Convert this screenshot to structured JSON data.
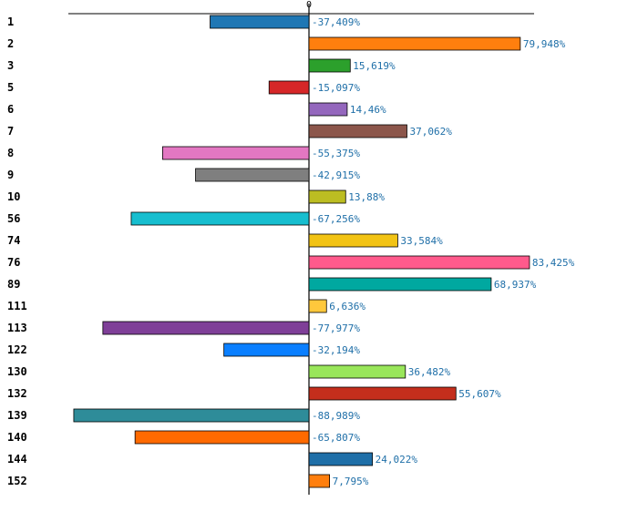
{
  "chart_data": {
    "type": "bar",
    "orientation": "horizontal",
    "title": "",
    "xlabel": "",
    "ylabel": "",
    "zero_label": "0",
    "xlim": [
      -100,
      93
    ],
    "categories": [
      "1",
      "2",
      "3",
      "5",
      "6",
      "7",
      "8",
      "9",
      "10",
      "56",
      "74",
      "76",
      "89",
      "111",
      "113",
      "122",
      "130",
      "132",
      "139",
      "140",
      "144",
      "152"
    ],
    "values": [
      -37.409,
      79.948,
      15.619,
      -15.097,
      14.46,
      37.062,
      -55.375,
      -42.915,
      13.88,
      -67.256,
      33.584,
      83.425,
      68.937,
      6.636,
      -77.977,
      -32.194,
      36.482,
      55.607,
      -88.989,
      -65.807,
      24.022,
      7.795
    ],
    "value_labels": [
      "-37,409%",
      "79,948%",
      "15,619%",
      "-15,097%",
      "14,46%",
      "37,062%",
      "-55,375%",
      "-42,915%",
      "13,88%",
      "-67,256%",
      "33,584%",
      "83,425%",
      "68,937%",
      "6,636%",
      "-77,977%",
      "-32,194%",
      "36,482%",
      "55,607%",
      "-88,989%",
      "-65,807%",
      "24,022%",
      "7,795%"
    ],
    "colors": [
      "#1f77b4",
      "#ff7f0e",
      "#2ca02c",
      "#d62728",
      "#9467bd",
      "#8c564b",
      "#e377c2",
      "#7f7f7f",
      "#bcbd22",
      "#17becf",
      "#f2c314",
      "#ff5a8c",
      "#00a8a0",
      "#ffc83c",
      "#7f3f98",
      "#0a7fff",
      "#99e65a",
      "#c42e1c",
      "#2e8c99",
      "#ff6a00",
      "#1f6fa8",
      "#ff7f0e"
    ],
    "grid": false,
    "legend": "none"
  }
}
